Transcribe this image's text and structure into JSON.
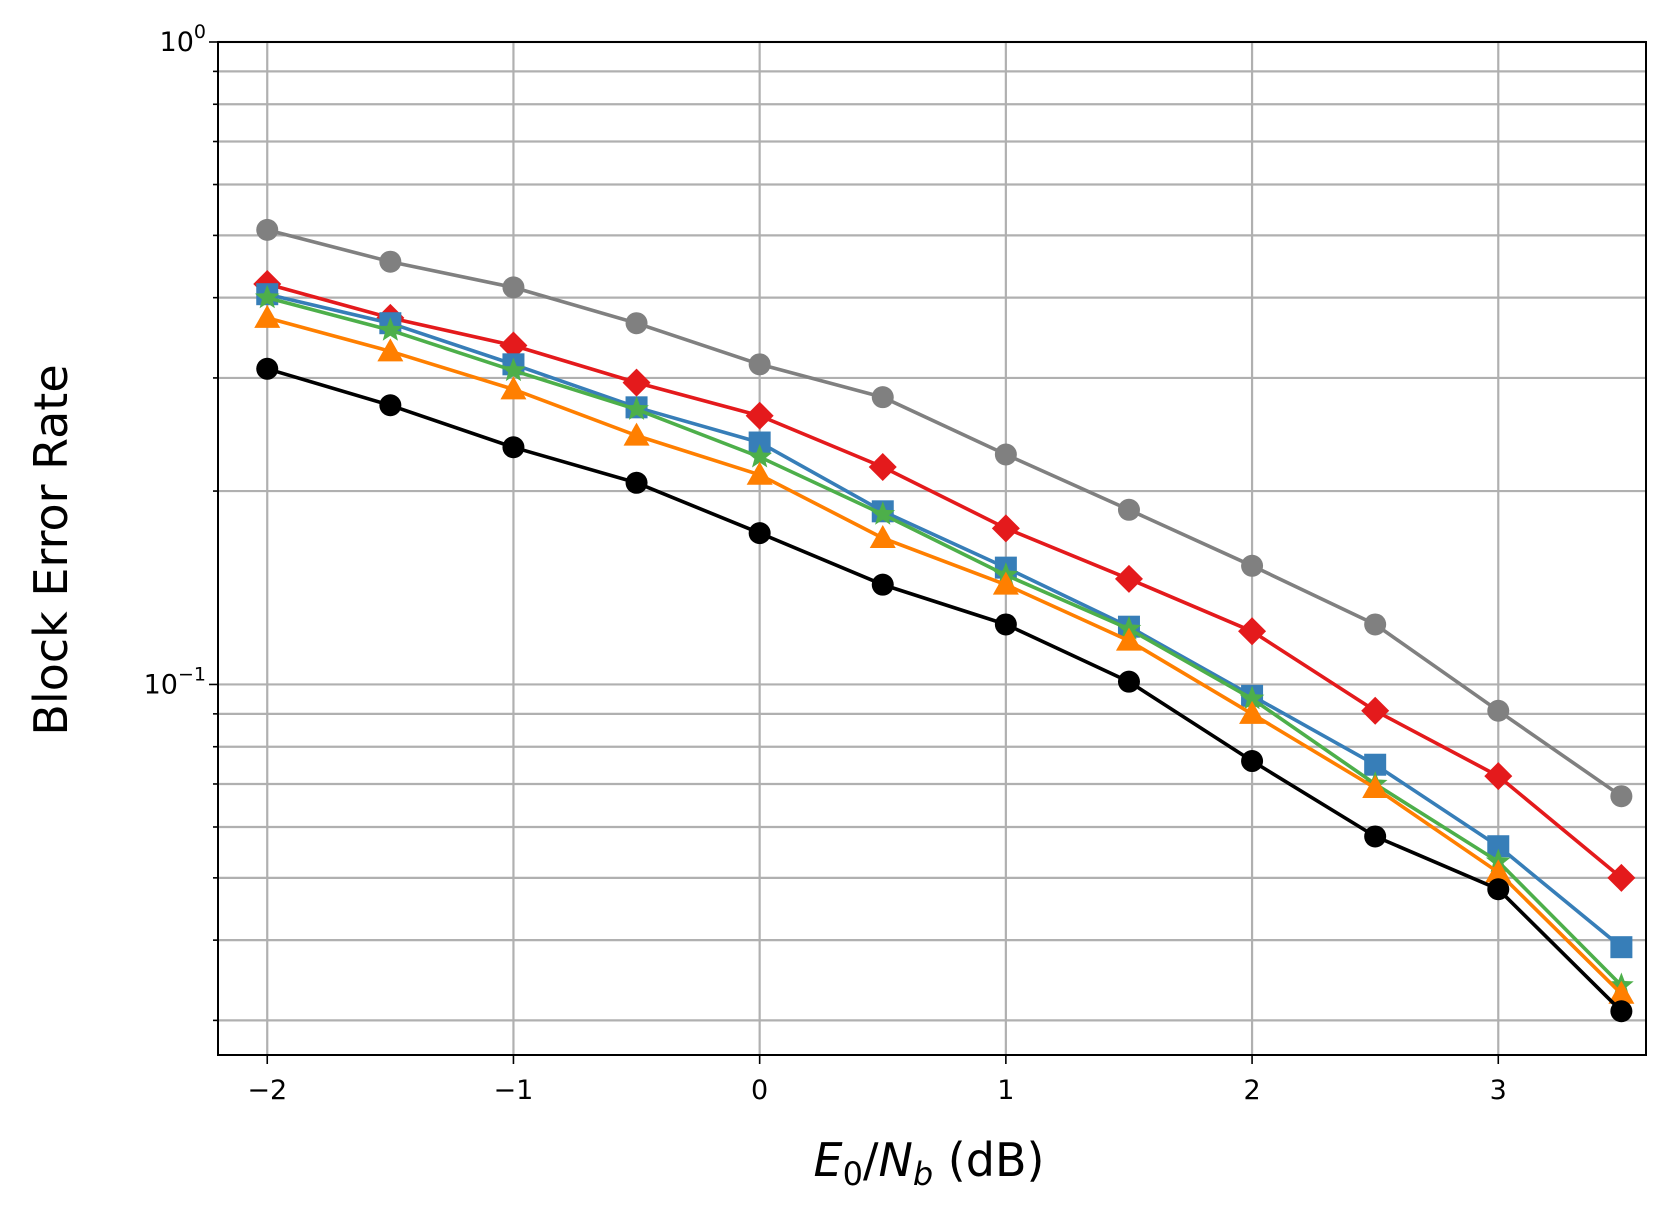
{
  "chart_data": {
    "type": "line",
    "title": "",
    "xlabel_parts": {
      "e": "E",
      "e_sub": "0",
      "slash": "/",
      "n": "N",
      "n_sub": "b",
      "unit": " (dB)"
    },
    "ylabel": "Block Error Rate",
    "x": [
      -2,
      -1.5,
      -1,
      -0.5,
      0,
      0.5,
      1,
      1.5,
      2,
      2.5,
      3,
      3.5
    ],
    "xlim": [
      -2.2,
      3.6
    ],
    "ylim": [
      0.0265,
      1.0
    ],
    "yscale": "log",
    "grid": true,
    "x_ticks": [
      {
        "value": -2,
        "label": "−2"
      },
      {
        "value": -1,
        "label": "−1"
      },
      {
        "value": 0,
        "label": "0"
      },
      {
        "value": 1,
        "label": "1"
      },
      {
        "value": 2,
        "label": "2"
      },
      {
        "value": 3,
        "label": "3"
      }
    ],
    "y_major_ticks": [
      {
        "value": 1.0,
        "base": "10",
        "exp": "0"
      },
      {
        "value": 0.1,
        "base": "10",
        "exp": "−1"
      }
    ],
    "y_minor_ticks": [
      0.03,
      0.04,
      0.05,
      0.06,
      0.07,
      0.08,
      0.09,
      0.2,
      0.3,
      0.4,
      0.5,
      0.6,
      0.7,
      0.8,
      0.9
    ],
    "series": [
      {
        "color": "#808080",
        "marker": "circle",
        "values": [
          0.51,
          0.455,
          0.415,
          0.365,
          0.315,
          0.28,
          0.228,
          0.187,
          0.153,
          0.124,
          0.091,
          0.067
        ]
      },
      {
        "color": "#e41a1c",
        "marker": "diamond",
        "values": [
          0.42,
          0.372,
          0.337,
          0.295,
          0.262,
          0.218,
          0.175,
          0.146,
          0.121,
          0.091,
          0.072,
          0.05
        ]
      },
      {
        "color": "#377eb8",
        "marker": "square",
        "values": [
          0.405,
          0.365,
          0.315,
          0.27,
          0.238,
          0.186,
          0.152,
          0.123,
          0.096,
          0.075,
          0.056,
          0.039
        ]
      },
      {
        "color": "#4daf4a",
        "marker": "star",
        "values": [
          0.4,
          0.356,
          0.308,
          0.268,
          0.226,
          0.184,
          0.148,
          0.122,
          0.095,
          0.07,
          0.053,
          0.034
        ]
      },
      {
        "color": "#ff7f00",
        "marker": "triangle",
        "values": [
          0.372,
          0.33,
          0.288,
          0.244,
          0.212,
          0.169,
          0.143,
          0.117,
          0.09,
          0.069,
          0.051,
          0.033
        ]
      },
      {
        "color": "#000000",
        "marker": "circle",
        "values": [
          0.31,
          0.272,
          0.234,
          0.206,
          0.172,
          0.143,
          0.124,
          0.101,
          0.076,
          0.058,
          0.048,
          0.031
        ]
      }
    ]
  }
}
